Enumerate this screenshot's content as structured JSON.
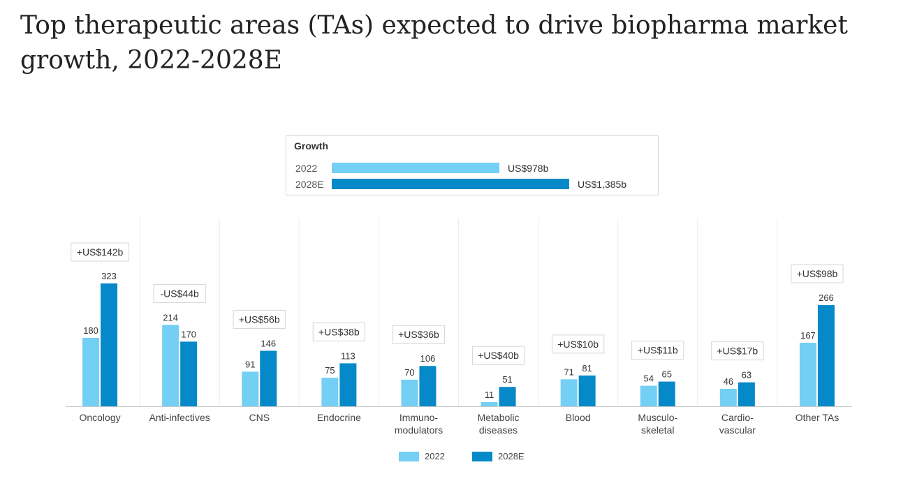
{
  "title": "Top therapeutic areas (TAs) expected to drive biopharma market growth, 2022-2028E",
  "colors": {
    "s2022": "#74cff4",
    "s2028": "#0589c8",
    "axis": "#c8c8c8",
    "text": "#444444"
  },
  "growth": {
    "title": "Growth",
    "rows": [
      {
        "label": "2022",
        "value": 978,
        "value_label": "US$978b"
      },
      {
        "label": "2028E",
        "value": 1385,
        "value_label": "US$1,385b"
      }
    ]
  },
  "chart_data": {
    "type": "bar",
    "categories": [
      [
        "Oncology"
      ],
      [
        "Anti-infectives"
      ],
      [
        "CNS"
      ],
      [
        "Endocrine"
      ],
      [
        "Immuno-",
        "modulators"
      ],
      [
        "Metabolic",
        "diseases"
      ],
      [
        "Blood"
      ],
      [
        "Musculo-",
        "skeletal"
      ],
      [
        "Cardio-",
        "vascular"
      ],
      [
        "Other TAs"
      ]
    ],
    "series": [
      {
        "name": "2022",
        "values": [
          180,
          214,
          91,
          75,
          70,
          11,
          71,
          54,
          46,
          167
        ]
      },
      {
        "name": "2028E",
        "values": [
          323,
          170,
          146,
          113,
          106,
          51,
          81,
          65,
          63,
          266
        ]
      }
    ],
    "annotations": [
      "+US$142b",
      "-US$44b",
      "+US$56b",
      "+US$38b",
      "+US$36b",
      "+US$40b",
      "+US$10b",
      "+US$11b",
      "+US$17b",
      "+US$98b"
    ],
    "ylim": [
      0,
      330
    ],
    "legend_position": "bottom-center"
  }
}
